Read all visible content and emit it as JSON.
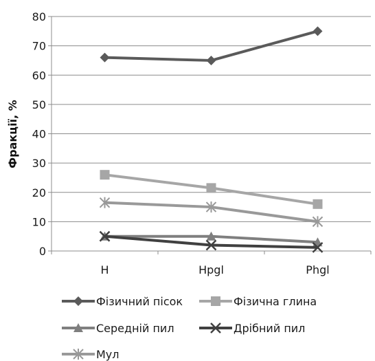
{
  "chart_data": {
    "type": "line",
    "categories": [
      "H",
      "Hpgl",
      "Phgl"
    ],
    "ylabel": "Фракції, %",
    "xlabel": "",
    "ylim": [
      0,
      80
    ],
    "yticks": [
      0,
      10,
      20,
      30,
      40,
      50,
      60,
      70,
      80
    ],
    "grid": true,
    "legend_position": "bottom",
    "series": [
      {
        "name": "Фізичний пісок",
        "values": [
          66,
          65,
          75
        ],
        "color": "#5a5a5a",
        "marker": "diamond"
      },
      {
        "name": "Фізична глина",
        "values": [
          26,
          21.5,
          16
        ],
        "color": "#a6a6a6",
        "marker": "square"
      },
      {
        "name": "Середній пил",
        "values": [
          5,
          5,
          3
        ],
        "color": "#7f7f7f",
        "marker": "triangle"
      },
      {
        "name": "Дрібний пил",
        "values": [
          5,
          2,
          1.2
        ],
        "color": "#404040",
        "marker": "x"
      },
      {
        "name": "Мул",
        "values": [
          16.5,
          15,
          10
        ],
        "color": "#999999",
        "marker": "star"
      }
    ]
  }
}
